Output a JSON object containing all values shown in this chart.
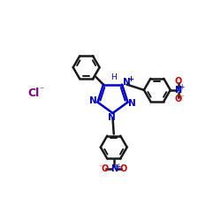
{
  "bg_color": "#ffffff",
  "line_color": "#1a1a1a",
  "blue_color": "#0000cc",
  "red_color": "#cc0000",
  "purple_color": "#800080",
  "figsize": [
    2.5,
    2.5
  ],
  "dpi": 100,
  "xlim": [
    0,
    10
  ],
  "ylim": [
    0,
    10
  ]
}
